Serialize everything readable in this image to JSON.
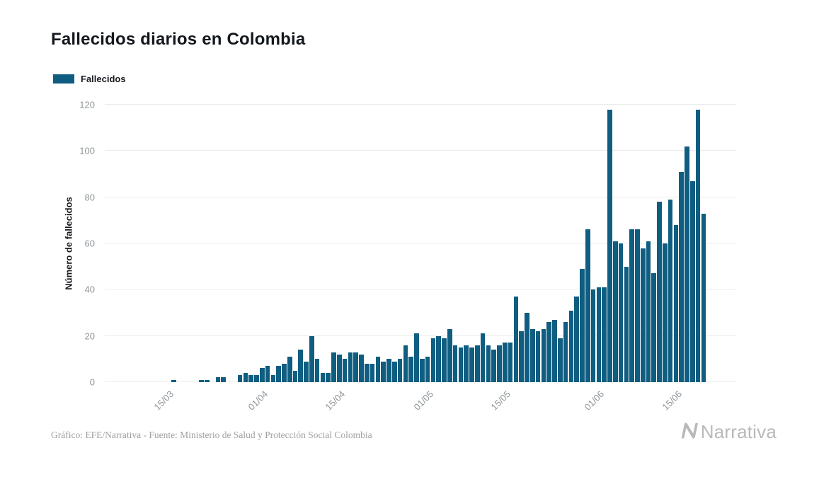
{
  "page": {
    "background": "#ffffff"
  },
  "title": "Fallecidos diarios en Colombia",
  "legend": {
    "label": "Fallecidos"
  },
  "footer": {
    "credit": "Gráfico: EFE/Narrativa - Fuente: Ministerio de Salud y Protección Social Colombia",
    "brand": "Narrativa",
    "brand_icon": "narrativa-n-logo"
  },
  "chart_data": {
    "type": "bar",
    "title": "Fallecidos diarios en Colombia",
    "series_name": "Fallecidos",
    "bar_color": "#0f5d80",
    "xlabel": "",
    "ylabel": "Número de fallecidos",
    "ylim": [
      0,
      120
    ],
    "yticks": [
      0,
      20,
      40,
      60,
      80,
      100,
      120
    ],
    "xticks": [
      "15/03",
      "01/04",
      "15/04",
      "01/05",
      "15/05",
      "01/06",
      "15/06"
    ],
    "grid": "horizontal",
    "legend_position": "top-left",
    "categories": [
      "04/03",
      "05/03",
      "06/03",
      "07/03",
      "08/03",
      "09/03",
      "10/03",
      "11/03",
      "12/03",
      "13/03",
      "14/03",
      "15/03",
      "16/03",
      "17/03",
      "18/03",
      "19/03",
      "20/03",
      "21/03",
      "22/03",
      "23/03",
      "24/03",
      "25/03",
      "26/03",
      "27/03",
      "28/03",
      "29/03",
      "30/03",
      "31/03",
      "01/04",
      "02/04",
      "03/04",
      "04/04",
      "05/04",
      "06/04",
      "07/04",
      "08/04",
      "09/04",
      "10/04",
      "11/04",
      "12/04",
      "13/04",
      "14/04",
      "15/04",
      "16/04",
      "17/04",
      "18/04",
      "19/04",
      "20/04",
      "21/04",
      "22/04",
      "23/04",
      "24/04",
      "25/04",
      "26/04",
      "27/04",
      "28/04",
      "29/04",
      "30/04",
      "01/05",
      "02/05",
      "03/05",
      "04/05",
      "05/05",
      "06/05",
      "07/05",
      "08/05",
      "09/05",
      "10/05",
      "11/05",
      "12/05",
      "13/05",
      "14/05",
      "15/05",
      "16/05",
      "17/05",
      "18/05",
      "19/05",
      "20/05",
      "21/05",
      "22/05",
      "23/05",
      "24/05",
      "25/05",
      "26/05",
      "27/05",
      "28/05",
      "29/05",
      "30/05",
      "31/05",
      "01/06",
      "02/06",
      "03/06",
      "04/06",
      "05/06",
      "06/06",
      "07/06",
      "08/06",
      "09/06",
      "10/06",
      "11/06",
      "12/06",
      "13/06",
      "14/06",
      "15/06",
      "16/06",
      "17/06",
      "18/06",
      "19/06",
      "20/06"
    ],
    "values": [
      0,
      0,
      0,
      0,
      0,
      0,
      0,
      0,
      0,
      0,
      0,
      0,
      1,
      0,
      0,
      0,
      0,
      1,
      1,
      0,
      2,
      2,
      0,
      0,
      3,
      4,
      3,
      3,
      6,
      7,
      3,
      7,
      8,
      11,
      5,
      14,
      9,
      20,
      10,
      4,
      4,
      13,
      12,
      10,
      13,
      13,
      12,
      8,
      8,
      11,
      9,
      10,
      9,
      10,
      16,
      11,
      21,
      10,
      11,
      19,
      20,
      19,
      23,
      16,
      15,
      16,
      15,
      16,
      21,
      16,
      14,
      16,
      17,
      17,
      37,
      22,
      30,
      23,
      22,
      23,
      26,
      27,
      19,
      26,
      31,
      37,
      49,
      66,
      40,
      41,
      41,
      118,
      61,
      60,
      50,
      66,
      66,
      58,
      61,
      47,
      78,
      60,
      79,
      68,
      91,
      102,
      87,
      118,
      73
    ]
  }
}
